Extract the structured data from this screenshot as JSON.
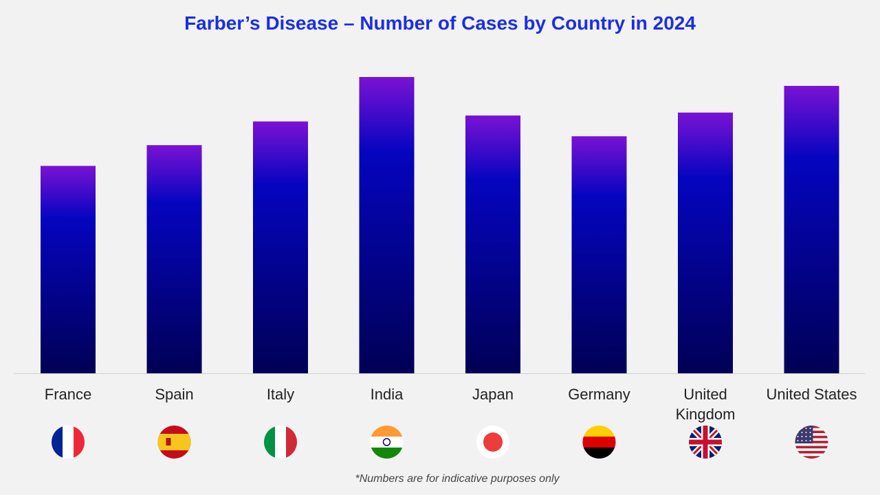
{
  "chart_data": {
    "type": "bar",
    "title": "Farber’s Disease – Number of Cases by Country in 2024",
    "categories": [
      "France",
      "Spain",
      "Italy",
      "India",
      "Japan",
      "Germany",
      "United Kingdom",
      "United States"
    ],
    "label_lines": [
      [
        "France"
      ],
      [
        "Spain"
      ],
      [
        "Italy"
      ],
      [
        "India"
      ],
      [
        "Japan"
      ],
      [
        "Germany"
      ],
      [
        "United",
        "Kingdom"
      ],
      [
        "United States"
      ]
    ],
    "values": [
      70,
      77,
      85,
      100,
      87,
      80,
      88,
      97
    ],
    "value_note": "relative bar heights estimated (no axis printed)",
    "ylim": [
      0,
      100
    ],
    "grid": false,
    "flag_icons": [
      "france-flag-icon",
      "spain-flag-icon",
      "italy-flag-icon",
      "india-flag-icon",
      "japan-flag-icon",
      "germany-flag-icon",
      "uk-flag-icon",
      "us-flag-icon"
    ],
    "colors": {
      "bar_top": "#7a12d4",
      "bar_mid": "#0505c0",
      "bar_bottom": "#000055",
      "title": "#1a2ee6"
    }
  },
  "footnote": "*Numbers are for indicative purposes only"
}
